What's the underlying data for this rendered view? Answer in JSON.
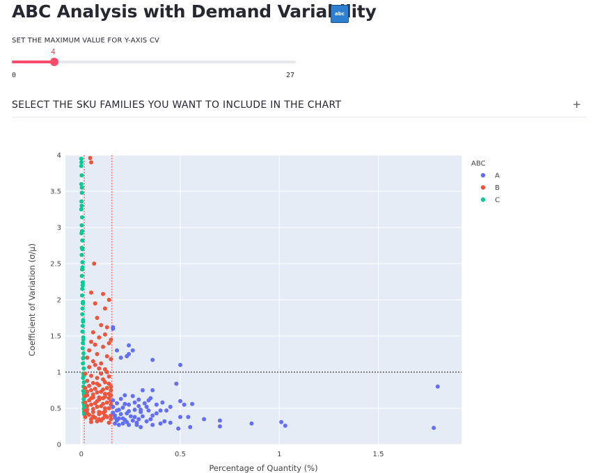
{
  "header": {
    "title": "ABC Analysis with Demand Variability",
    "badge_text": "abc",
    "badge_icon": "abc-icon"
  },
  "slider": {
    "label": "SET THE MAXIMUM VALUE FOR Y-AXIS CV",
    "value": 4,
    "value_text": "4",
    "min": 0,
    "min_text": "0",
    "max": 27,
    "max_text": "27",
    "accent_color": "#ff4b6a"
  },
  "expander": {
    "label": "SELECT THE SKU FAMILIES YOU WANT TO INCLUDE IN THE CHART",
    "icon": "plus-icon",
    "icon_text": "+"
  },
  "chart_data": {
    "type": "scatter",
    "xlabel": "Percentage of Quantity (%)",
    "ylabel": "Coefficient of Variation (σ/µ)",
    "xlim": [
      -0.08,
      1.92
    ],
    "ylim": [
      0,
      4
    ],
    "x_ticks": [
      0,
      0.5,
      1,
      1.5
    ],
    "x_tick_labels": [
      "0",
      "0.5",
      "1",
      "1.5"
    ],
    "y_ticks": [
      0,
      0.5,
      1,
      1.5,
      2,
      2.5,
      3,
      3.5,
      4
    ],
    "y_tick_labels": [
      "0",
      "0.5",
      "1",
      "1.5",
      "2",
      "2.5",
      "3",
      "3.5",
      "4"
    ],
    "grid": true,
    "legend_title": "ABC",
    "legend_position": "top-right",
    "reference_lines": [
      {
        "orientation": "horizontal",
        "value": 1,
        "color": "#000000",
        "style": "dotted"
      },
      {
        "orientation": "vertical",
        "value": 0.015,
        "color": "#e0442e",
        "style": "dotted"
      },
      {
        "orientation": "vertical",
        "value": 0.155,
        "color": "#e0442e",
        "style": "dotted"
      }
    ],
    "series": [
      {
        "name": "A",
        "color": "#636efa",
        "points": [
          [
            1.78,
            0.23
          ],
          [
            1.8,
            0.8
          ],
          [
            1.03,
            0.26
          ],
          [
            1.01,
            0.31
          ],
          [
            0.86,
            0.29
          ],
          [
            0.7,
            0.33
          ],
          [
            0.7,
            0.25
          ],
          [
            0.62,
            0.35
          ],
          [
            0.56,
            0.56
          ],
          [
            0.55,
            0.24
          ],
          [
            0.54,
            0.38
          ],
          [
            0.52,
            0.55
          ],
          [
            0.5,
            0.6
          ],
          [
            0.5,
            0.38
          ],
          [
            0.49,
            0.22
          ],
          [
            0.48,
            0.84
          ],
          [
            0.5,
            1.1
          ],
          [
            0.45,
            0.3
          ],
          [
            0.45,
            0.52
          ],
          [
            0.43,
            0.47
          ],
          [
            0.42,
            0.32
          ],
          [
            0.41,
            0.58
          ],
          [
            0.4,
            0.29
          ],
          [
            0.38,
            0.55
          ],
          [
            0.36,
            0.27
          ],
          [
            0.36,
            0.4
          ],
          [
            0.35,
            0.64
          ],
          [
            0.35,
            0.35
          ],
          [
            0.34,
            0.47
          ],
          [
            0.33,
            0.32
          ],
          [
            0.32,
            0.57
          ],
          [
            0.31,
            0.75
          ],
          [
            0.3,
            0.45
          ],
          [
            0.3,
            0.24
          ],
          [
            0.29,
            0.62
          ],
          [
            0.29,
            0.35
          ],
          [
            0.28,
            0.27
          ],
          [
            0.27,
            0.48
          ],
          [
            0.26,
            0.33
          ],
          [
            0.26,
            0.67
          ],
          [
            0.25,
            0.39
          ],
          [
            0.24,
            0.27
          ],
          [
            0.24,
            0.55
          ],
          [
            0.23,
            0.43
          ],
          [
            0.22,
            0.34
          ],
          [
            0.22,
            0.68
          ],
          [
            0.21,
            0.51
          ],
          [
            0.21,
            0.29
          ],
          [
            0.2,
            0.42
          ],
          [
            0.2,
            0.63
          ],
          [
            0.19,
            0.36
          ],
          [
            0.19,
            0.27
          ],
          [
            0.18,
            0.47
          ],
          [
            0.18,
            0.33
          ],
          [
            0.18,
            0.57
          ],
          [
            0.17,
            0.4
          ],
          [
            0.17,
            0.29
          ],
          [
            0.16,
            0.44
          ],
          [
            0.16,
            0.52
          ],
          [
            0.16,
            0.61
          ],
          [
            0.16,
            1.62
          ],
          [
            0.16,
            1.6
          ],
          [
            0.2,
            1.2
          ],
          [
            0.18,
            1.3
          ],
          [
            0.23,
            1.22
          ],
          [
            0.24,
            1.25
          ],
          [
            0.24,
            1.37
          ],
          [
            0.26,
            1.3
          ],
          [
            0.36,
            1.17
          ],
          [
            0.27,
            0.38
          ],
          [
            0.31,
            0.39
          ],
          [
            0.33,
            0.52
          ],
          [
            0.38,
            0.43
          ],
          [
            0.27,
            0.58
          ],
          [
            0.36,
            0.75
          ],
          [
            0.24,
            0.46
          ],
          [
            0.21,
            0.36
          ],
          [
            0.28,
            0.3
          ],
          [
            0.22,
            0.56
          ],
          [
            0.17,
            0.37
          ],
          [
            0.29,
            0.53
          ],
          [
            0.34,
            0.61
          ],
          [
            0.19,
            0.48
          ],
          [
            0.23,
            0.31
          ],
          [
            0.3,
            0.48
          ],
          [
            0.4,
            0.47
          ]
        ]
      },
      {
        "name": "B",
        "color": "#ef553b",
        "points": [
          [
            0.045,
            3.96
          ],
          [
            0.05,
            3.9
          ],
          [
            0.065,
            2.5
          ],
          [
            0.05,
            2.1
          ],
          [
            0.07,
            1.95
          ],
          [
            0.11,
            2.08
          ],
          [
            0.12,
            1.88
          ],
          [
            0.14,
            2.0
          ],
          [
            0.08,
            1.75
          ],
          [
            0.1,
            1.65
          ],
          [
            0.13,
            1.62
          ],
          [
            0.06,
            1.55
          ],
          [
            0.09,
            1.48
          ],
          [
            0.12,
            1.52
          ],
          [
            0.15,
            1.45
          ],
          [
            0.05,
            1.42
          ],
          [
            0.07,
            1.38
          ],
          [
            0.11,
            1.35
          ],
          [
            0.14,
            1.4
          ],
          [
            0.04,
            1.3
          ],
          [
            0.08,
            1.25
          ],
          [
            0.13,
            1.22
          ],
          [
            0.03,
            1.2
          ],
          [
            0.06,
            1.15
          ],
          [
            0.1,
            1.12
          ],
          [
            0.15,
            1.18
          ],
          [
            0.04,
            1.07
          ],
          [
            0.09,
            1.05
          ],
          [
            0.12,
            1.04
          ],
          [
            0.02,
            0.98
          ],
          [
            0.05,
            0.95
          ],
          [
            0.08,
            0.92
          ],
          [
            0.11,
            0.9
          ],
          [
            0.14,
            0.94
          ],
          [
            0.03,
            0.88
          ],
          [
            0.06,
            0.85
          ],
          [
            0.09,
            0.82
          ],
          [
            0.12,
            0.86
          ],
          [
            0.15,
            0.8
          ],
          [
            0.02,
            0.78
          ],
          [
            0.05,
            0.75
          ],
          [
            0.08,
            0.72
          ],
          [
            0.11,
            0.76
          ],
          [
            0.14,
            0.7
          ],
          [
            0.03,
            0.68
          ],
          [
            0.06,
            0.65
          ],
          [
            0.09,
            0.62
          ],
          [
            0.12,
            0.66
          ],
          [
            0.15,
            0.6
          ],
          [
            0.02,
            0.58
          ],
          [
            0.05,
            0.55
          ],
          [
            0.08,
            0.52
          ],
          [
            0.11,
            0.56
          ],
          [
            0.14,
            0.5
          ],
          [
            0.03,
            0.48
          ],
          [
            0.06,
            0.45
          ],
          [
            0.09,
            0.42
          ],
          [
            0.12,
            0.46
          ],
          [
            0.15,
            0.4
          ],
          [
            0.02,
            0.38
          ],
          [
            0.05,
            0.35
          ],
          [
            0.08,
            0.32
          ],
          [
            0.11,
            0.36
          ],
          [
            0.14,
            0.3
          ],
          [
            0.04,
            0.41
          ],
          [
            0.07,
            0.37
          ],
          [
            0.1,
            0.33
          ],
          [
            0.13,
            0.38
          ],
          [
            0.04,
            0.61
          ],
          [
            0.07,
            0.57
          ],
          [
            0.1,
            0.53
          ],
          [
            0.13,
            0.58
          ],
          [
            0.04,
            0.81
          ],
          [
            0.07,
            0.77
          ],
          [
            0.1,
            0.73
          ],
          [
            0.13,
            0.78
          ],
          [
            0.03,
            0.53
          ],
          [
            0.06,
            0.49
          ],
          [
            0.09,
            0.45
          ],
          [
            0.12,
            0.5
          ],
          [
            0.15,
            0.55
          ],
          [
            0.03,
            0.73
          ],
          [
            0.06,
            0.69
          ],
          [
            0.09,
            0.65
          ],
          [
            0.12,
            0.7
          ],
          [
            0.15,
            0.75
          ],
          [
            0.03,
            0.43
          ],
          [
            0.06,
            0.39
          ],
          [
            0.09,
            0.35
          ],
          [
            0.12,
            0.4
          ],
          [
            0.15,
            0.35
          ],
          [
            0.02,
            0.47
          ],
          [
            0.05,
            0.64
          ],
          [
            0.08,
            0.84
          ],
          [
            0.11,
            0.64
          ],
          [
            0.14,
            0.84
          ],
          [
            0.05,
            0.31
          ],
          [
            0.08,
            0.6
          ],
          [
            0.11,
            0.44
          ],
          [
            0.14,
            0.64
          ],
          [
            0.02,
            0.67
          ],
          [
            0.13,
            1.0
          ],
          [
            0.07,
            1.1
          ],
          [
            0.1,
            0.98
          ],
          [
            0.15,
            0.68
          ]
        ]
      },
      {
        "name": "C",
        "color": "#00cc96",
        "points": [
          [
            0.0,
            3.95
          ],
          [
            0.0,
            3.85
          ],
          [
            0.002,
            3.72
          ],
          [
            0.0,
            3.6
          ],
          [
            0.003,
            3.48
          ],
          [
            0.001,
            3.36
          ],
          [
            0.0,
            3.25
          ],
          [
            0.004,
            3.14
          ],
          [
            0.002,
            3.03
          ],
          [
            0.001,
            2.92
          ],
          [
            0.005,
            2.82
          ],
          [
            0.003,
            2.72
          ],
          [
            0.002,
            2.62
          ],
          [
            0.006,
            2.52
          ],
          [
            0.004,
            2.42
          ],
          [
            0.003,
            2.33
          ],
          [
            0.007,
            2.24
          ],
          [
            0.005,
            2.15
          ],
          [
            0.004,
            2.06
          ],
          [
            0.008,
            1.97
          ],
          [
            0.006,
            1.88
          ],
          [
            0.005,
            1.8
          ],
          [
            0.009,
            1.72
          ],
          [
            0.007,
            1.64
          ],
          [
            0.006,
            1.56
          ],
          [
            0.01,
            1.48
          ],
          [
            0.008,
            1.4
          ],
          [
            0.007,
            1.33
          ],
          [
            0.011,
            1.26
          ],
          [
            0.009,
            1.19
          ],
          [
            0.008,
            1.12
          ],
          [
            0.012,
            1.05
          ],
          [
            0.01,
            0.98
          ],
          [
            0.009,
            0.92
          ],
          [
            0.013,
            0.86
          ],
          [
            0.011,
            0.8
          ],
          [
            0.01,
            0.74
          ],
          [
            0.014,
            0.68
          ],
          [
            0.012,
            0.63
          ],
          [
            0.011,
            0.58
          ],
          [
            0.015,
            0.53
          ],
          [
            0.013,
            0.49
          ],
          [
            0.014,
            0.45
          ],
          [
            0.015,
            0.42
          ],
          [
            0.001,
            3.9
          ],
          [
            0.003,
            3.55
          ],
          [
            0.002,
            3.3
          ],
          [
            0.004,
            2.95
          ],
          [
            0.005,
            2.7
          ],
          [
            0.006,
            2.45
          ],
          [
            0.007,
            2.2
          ],
          [
            0.008,
            1.95
          ],
          [
            0.009,
            1.7
          ],
          [
            0.01,
            1.45
          ],
          [
            0.011,
            1.2
          ],
          [
            0.012,
            0.95
          ],
          [
            0.013,
            0.7
          ],
          [
            0.014,
            0.55
          ]
        ]
      }
    ]
  }
}
